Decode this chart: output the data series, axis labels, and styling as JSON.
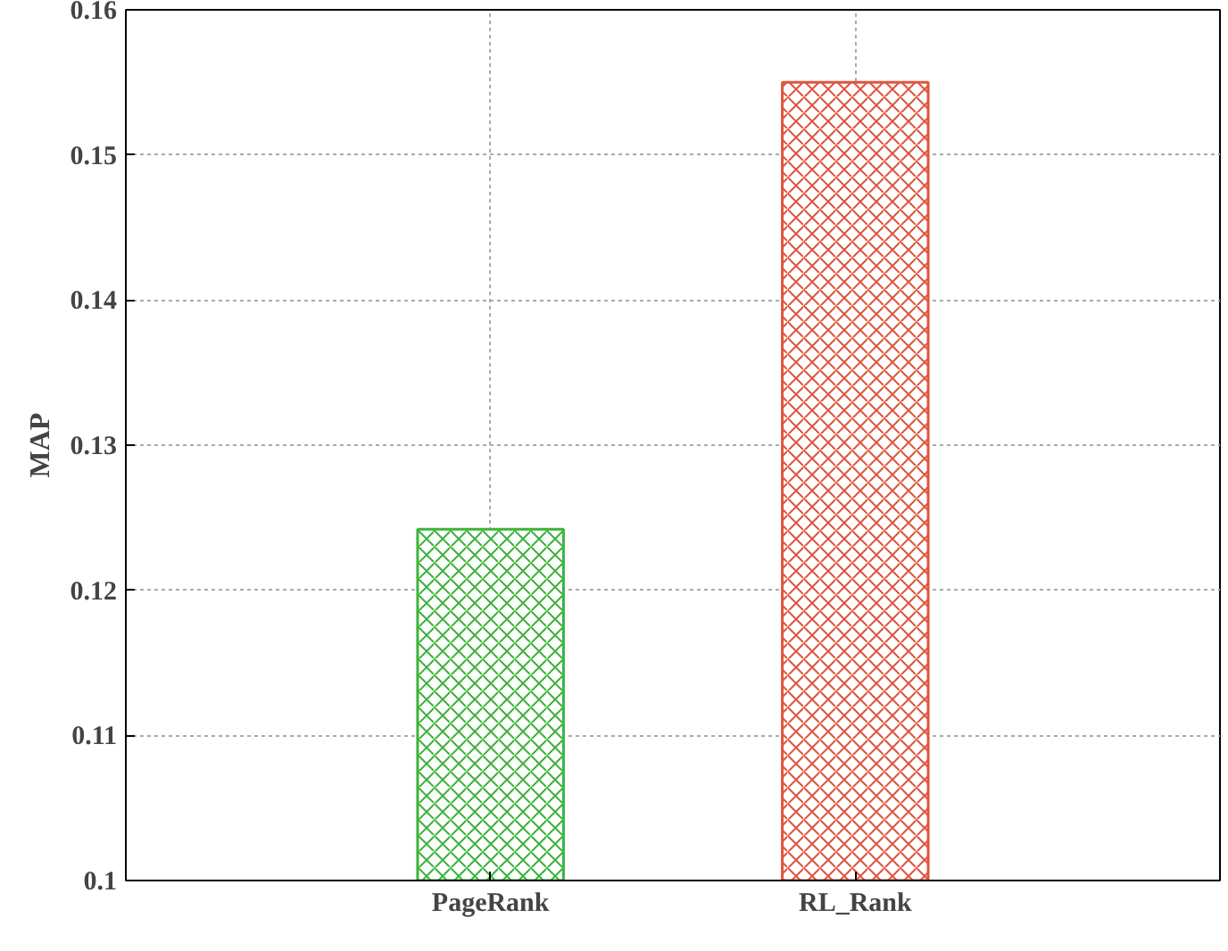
{
  "chart_data": {
    "type": "bar",
    "ylabel": "MAP",
    "categories": [
      "PageRank",
      "RL_Rank"
    ],
    "values": [
      0.1242,
      0.155
    ],
    "colors": [
      "#3cb43c",
      "#e0553c"
    ],
    "ylim": [
      0.1,
      0.16
    ],
    "yticks": [
      0.1,
      0.11,
      0.12,
      0.13,
      0.14,
      0.15,
      0.16
    ],
    "grid": true
  }
}
